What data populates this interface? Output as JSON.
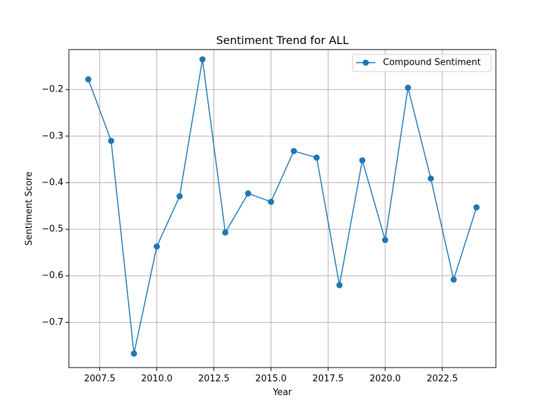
{
  "chart_data": {
    "type": "line",
    "title": "Sentiment Trend for ALL",
    "xlabel": "Year",
    "ylabel": "Sentiment Score",
    "xlim": [
      2006.15,
      2024.85
    ],
    "ylim": [
      -0.797,
      -0.114
    ],
    "grid": true,
    "legend_position": "top-right",
    "x_ticks": [
      2007.5,
      2010.0,
      2012.5,
      2015.0,
      2017.5,
      2020.0,
      2022.5
    ],
    "x_tick_labels": [
      "2007.5",
      "2010.0",
      "2012.5",
      "2015.0",
      "2017.5",
      "2020.0",
      "2022.5"
    ],
    "y_ticks": [
      -0.7,
      -0.6,
      -0.5,
      -0.4,
      -0.3,
      -0.2
    ],
    "y_tick_labels": [
      "−0.7",
      "−0.6",
      "−0.5",
      "−0.4",
      "−0.3",
      "−0.2"
    ],
    "series": [
      {
        "name": "Compound Sentiment",
        "color": "#1f77b4",
        "x": [
          2007,
          2008,
          2009,
          2010,
          2011,
          2012,
          2013,
          2014,
          2015,
          2016,
          2017,
          2018,
          2019,
          2020,
          2021,
          2022,
          2023,
          2024
        ],
        "values": [
          -0.178,
          -0.31,
          -0.767,
          -0.537,
          -0.429,
          -0.135,
          -0.507,
          -0.423,
          -0.441,
          -0.332,
          -0.346,
          -0.62,
          -0.352,
          -0.523,
          -0.196,
          -0.391,
          -0.608,
          -0.453
        ]
      }
    ]
  }
}
